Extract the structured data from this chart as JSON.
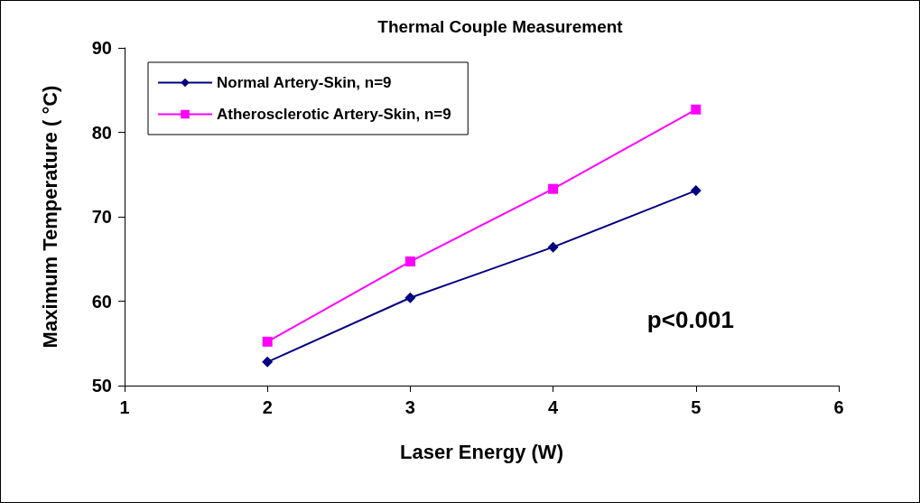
{
  "chart_data": {
    "type": "line",
    "title": "Thermal Couple Measurement",
    "xlabel": "Laser Energy (W)",
    "ylabel": "Maximum Temperature ( °C)",
    "x": [
      2,
      3,
      4,
      5
    ],
    "series": [
      {
        "name": "Normal Artery-Skin, n=9",
        "color": "#000080",
        "marker": "diamond",
        "values": [
          52.8,
          60.4,
          66.4,
          73.1
        ]
      },
      {
        "name": "Atherosclerotic Artery-Skin, n=9",
        "color": "#ff00ff",
        "marker": "square",
        "values": [
          55.2,
          64.7,
          73.3,
          82.7
        ]
      }
    ],
    "xlim": [
      1,
      6
    ],
    "xticks": [
      1,
      2,
      3,
      4,
      5,
      6
    ],
    "ylim": [
      50,
      90
    ],
    "yticks": [
      50,
      60,
      70,
      80,
      90
    ],
    "grid": false,
    "legend": "top left",
    "annotations": [
      "p<0.001"
    ]
  }
}
